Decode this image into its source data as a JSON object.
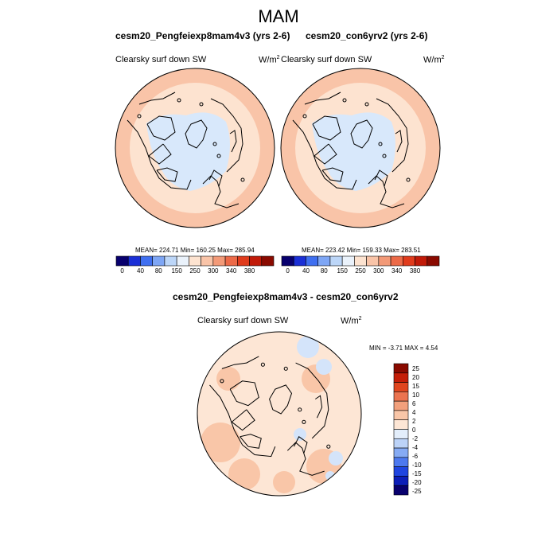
{
  "main_title": "MAM",
  "panels": [
    {
      "title": "cesm20_Pengfeiexp8mam4v3 (yrs 2-6)",
      "variable": "Clearsky surf down SW",
      "units": "W/m",
      "units_sup": "2",
      "stats": "MEAN= 224.71  Min= 160.25  Max= 285.94"
    },
    {
      "title": "cesm20_con6yrv2 (yrs 2-6)",
      "variable": "Clearsky surf down SW",
      "units": "W/m",
      "units_sup": "2",
      "stats": "MEAN= 223.42  Min= 159.33  Max= 283.51"
    },
    {
      "title": "cesm20_Pengfeiexp8mam4v3 - cesm20_con6yrv2",
      "variable": "Clearsky surf down SW",
      "units": "W/m",
      "units_sup": "2",
      "stats": "MIN =  -3.71 MAX =   4.54"
    }
  ],
  "abs_colorbar": {
    "colors": [
      "#08006e",
      "#1a2fd6",
      "#3f6ff0",
      "#7ea6f5",
      "#bcd6f8",
      "#eaf2fb",
      "#fde3d0",
      "#f9c4a8",
      "#f39a78",
      "#ec6a48",
      "#e03b1c",
      "#c11a08",
      "#8a0a00"
    ],
    "labels": [
      "0",
      "40",
      "80",
      "150",
      "250",
      "300",
      "340",
      "380"
    ]
  },
  "diff_colorbar": {
    "colors": [
      "#08006e",
      "#0c1eb8",
      "#1f45e0",
      "#4d79ef",
      "#86abf4",
      "#bcd3f8",
      "#e3eefb",
      "#fde6d5",
      "#f9c6a8",
      "#f2a07c",
      "#eb7450",
      "#e0461f",
      "#c41e08",
      "#8a0a00"
    ],
    "labels": [
      "25",
      "20",
      "15",
      "10",
      "6",
      "4",
      "2",
      "0",
      "-2",
      "-4",
      "-6",
      "-10",
      "-15",
      "-20",
      "-25"
    ]
  },
  "map_colors": {
    "ocean_ring": "#fde3d0",
    "outer_warm": "#f9c4a8",
    "polar_cap": "#d8e8fb",
    "diff_base": "#fde6d5",
    "diff_warm": "#f9c6a8",
    "diff_cool": "#d4e4fa"
  }
}
